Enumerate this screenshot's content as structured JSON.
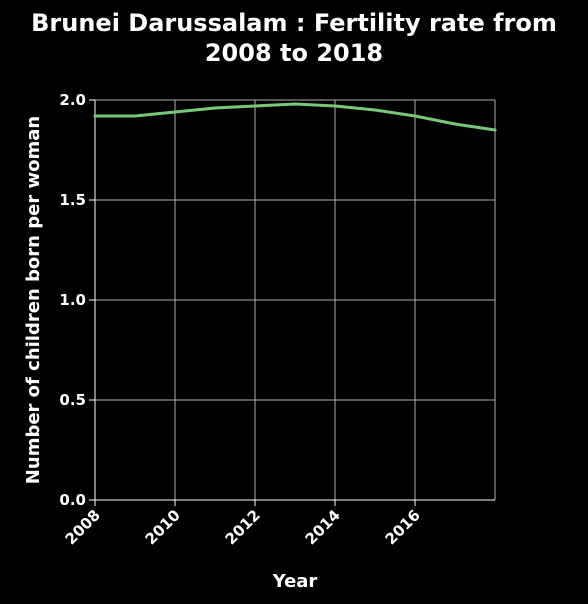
{
  "colors": {
    "background": "#000000",
    "text": "#ffffff",
    "grid": "#b0b0b0",
    "series_line": "#77c97a"
  },
  "chart_data": {
    "type": "line",
    "title_lines": [
      "Brunei Darussalam : Fertility rate from",
      "2008 to 2018"
    ],
    "xlabel": "Year",
    "ylabel": "Number of children born per woman",
    "xlim": [
      2008,
      2018
    ],
    "ylim": [
      0,
      2
    ],
    "grid": true,
    "x_ticks": [
      2008,
      2010,
      2012,
      2014,
      2016
    ],
    "x_tick_labels": [
      "2008",
      "2010",
      "2012",
      "2014",
      "2016"
    ],
    "y_ticks": [
      0,
      0.5,
      1,
      1.5,
      2
    ],
    "y_tick_labels": [
      "0.0",
      "0.5",
      "1.0",
      "1.5",
      "2.0"
    ],
    "x": [
      2008,
      2009,
      2010,
      2011,
      2012,
      2013,
      2014,
      2015,
      2016,
      2017,
      2018
    ],
    "series": [
      {
        "values": [
          1.92,
          1.92,
          1.94,
          1.96,
          1.97,
          1.98,
          1.97,
          1.95,
          1.92,
          1.88,
          1.85
        ]
      }
    ]
  }
}
